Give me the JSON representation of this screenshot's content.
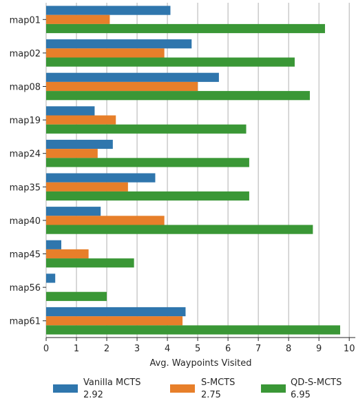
{
  "chart_data": {
    "type": "bar",
    "orientation": "horizontal",
    "categories": [
      "map01",
      "map02",
      "map08",
      "map19",
      "map24",
      "map35",
      "map40",
      "map45",
      "map56",
      "map61"
    ],
    "series": [
      {
        "name": "Vanilla MCTS",
        "color": "#2f76ad",
        "values": [
          4.1,
          4.8,
          5.7,
          1.6,
          2.2,
          3.6,
          1.8,
          0.5,
          0.3,
          4.6
        ]
      },
      {
        "name": "S-MCTS",
        "color": "#e77f2a",
        "values": [
          2.1,
          3.9,
          5.0,
          2.3,
          1.7,
          2.7,
          3.9,
          1.4,
          0.0,
          4.5
        ]
      },
      {
        "name": "QD-S-MCTS",
        "color": "#3a9736",
        "values": [
          9.2,
          8.2,
          8.7,
          6.6,
          6.7,
          6.7,
          8.8,
          2.9,
          2.0,
          9.7
        ]
      }
    ],
    "xlabel": "Avg. Waypoints Visited",
    "ylabel": "",
    "xlim": [
      0,
      10.2
    ],
    "xticks": [
      "0",
      "1",
      "2",
      "3",
      "4",
      "5",
      "6",
      "7",
      "8",
      "9",
      "10"
    ],
    "grid": "vertical",
    "legend": {
      "placement": "bottom",
      "entries": [
        {
          "label": "Vanilla MCTS",
          "sub": "2.92"
        },
        {
          "label": "S-MCTS",
          "sub": "2.75"
        },
        {
          "label": "QD-S-MCTS",
          "sub": "6.95"
        }
      ]
    }
  }
}
